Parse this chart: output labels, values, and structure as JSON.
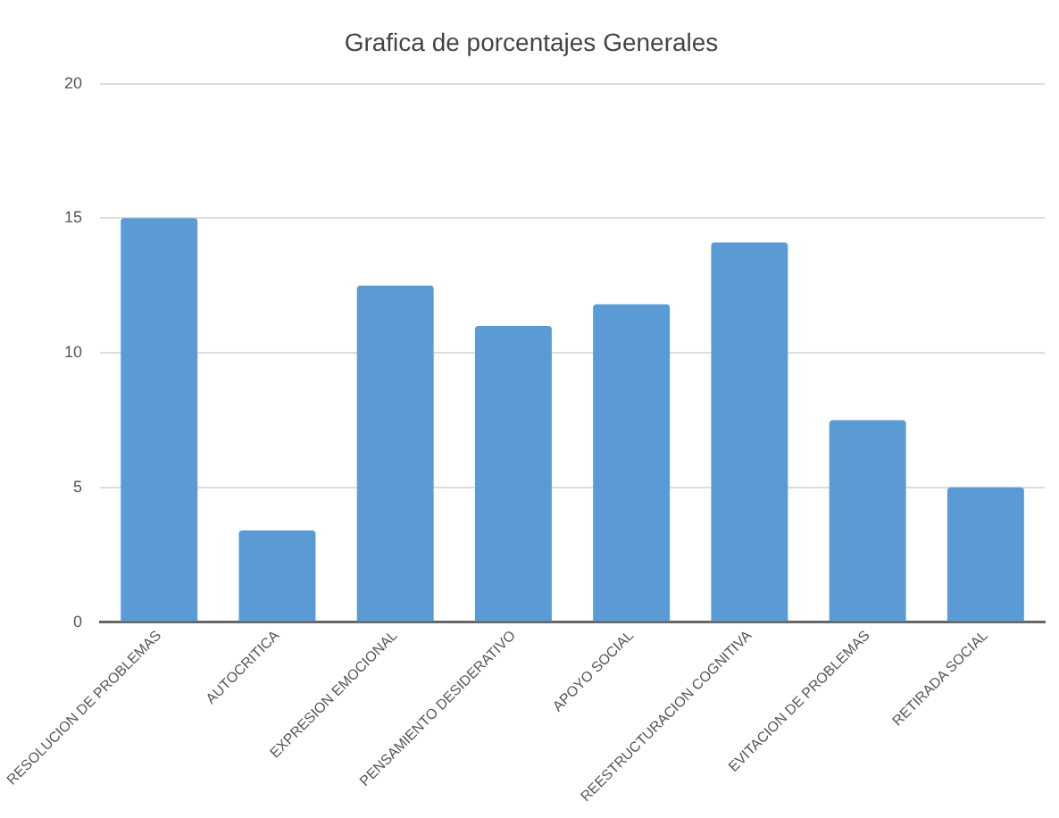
{
  "chart_data": {
    "type": "bar",
    "title": "Grafica de porcentajes Generales",
    "categories": [
      "RESOLUCION DE PROBLEMAS",
      "AUTOCRITICA",
      "EXPRESION EMOCIONAL",
      "PENSAMIENTO DESIDERATIVO",
      "APOYO SOCIAL",
      "REESTRUCTURACION COGNITIVA",
      "EVITACION DE PROBLEMAS",
      "RETIRADA SOCIAL"
    ],
    "values": [
      15,
      3.4,
      12.5,
      11,
      11.8,
      14.1,
      7.5,
      5
    ],
    "color": "#5b9bd5",
    "ylim": [
      0,
      20
    ],
    "yticks": [
      0,
      5,
      10,
      15,
      20
    ],
    "grid": "y",
    "legend": false
  }
}
